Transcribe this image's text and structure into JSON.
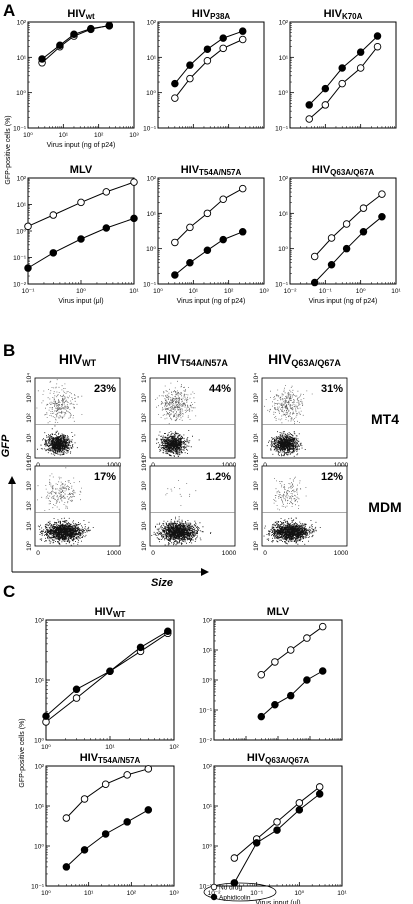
{
  "figure": {
    "panel_letters": [
      "A",
      "B",
      "C"
    ],
    "panel_a": {
      "ylabel": "GFP-positive cells (%)"
    },
    "panel_b": {
      "gfp_label": "GFP",
      "size_label": "Size",
      "y_ticks": [
        "10⁰",
        "10¹",
        "10²",
        "10³",
        "10⁴"
      ],
      "x_ticks": [
        "0",
        "1000"
      ],
      "row_labels": [
        "MT4",
        "MDM"
      ],
      "columns": [
        {
          "title": "HIV",
          "sub": "WT",
          "percents": [
            "23%",
            "17%"
          ]
        },
        {
          "title": "HIV",
          "sub": "T54A/N57A",
          "percents": [
            "44%",
            "1.2%"
          ]
        },
        {
          "title": "HIV",
          "sub": "Q63A/Q67A",
          "percents": [
            "31%",
            "12%"
          ]
        }
      ]
    },
    "panel_c": {
      "ylabel": "GFP-positive cells (%)",
      "legend": [
        "No drug",
        "Aphidicolin"
      ]
    }
  },
  "chart_data": [
    {
      "panel": "A",
      "type": "line",
      "title": "HIV",
      "title_sub": "wt",
      "xlabel": "Virus input (ng of p24)",
      "ylabel": "GFP-positive cells (%)",
      "xscale": "log",
      "yscale": "log",
      "xlim": [
        1,
        1000
      ],
      "ylim": [
        0.1,
        100
      ],
      "xticks": [
        "10⁰",
        "10¹",
        "10²",
        "10³"
      ],
      "yticks": [
        "10⁻¹",
        "10⁰",
        "10¹",
        "10²"
      ],
      "series": [
        {
          "marker": "open",
          "x": [
            2.5,
            8,
            20,
            60,
            200
          ],
          "y": [
            7,
            20,
            40,
            62,
            80
          ]
        },
        {
          "marker": "filled",
          "x": [
            2.5,
            8,
            20,
            60,
            200
          ],
          "y": [
            9,
            22,
            45,
            65,
            78
          ]
        }
      ]
    },
    {
      "panel": "A",
      "type": "line",
      "title": "HIV",
      "title_sub": "P38A",
      "xlabel": "",
      "ylabel": "",
      "xscale": "log",
      "yscale": "log",
      "xlim": [
        1,
        1000
      ],
      "ylim": [
        0.1,
        100
      ],
      "xticks": [],
      "yticks": [
        "10⁻¹",
        "10⁰",
        "10¹",
        "10²"
      ],
      "series": [
        {
          "marker": "open",
          "x": [
            3,
            8,
            25,
            70,
            250
          ],
          "y": [
            0.7,
            2.5,
            8,
            18,
            32
          ]
        },
        {
          "marker": "filled",
          "x": [
            3,
            8,
            25,
            70,
            250
          ],
          "y": [
            1.8,
            6,
            17,
            35,
            55
          ]
        }
      ]
    },
    {
      "panel": "A",
      "type": "line",
      "title": "HIV",
      "title_sub": "K70A",
      "xlabel": "",
      "ylabel": "",
      "xscale": "log",
      "yscale": "log",
      "xlim": [
        0.1,
        100
      ],
      "ylim": [
        0.1,
        100
      ],
      "xticks": [],
      "yticks": [
        "10⁻¹",
        "10⁰",
        "10¹",
        "10²"
      ],
      "series": [
        {
          "marker": "open",
          "x": [
            0.35,
            1,
            3,
            10,
            30
          ],
          "y": [
            0.18,
            0.45,
            1.8,
            5,
            20
          ]
        },
        {
          "marker": "filled",
          "x": [
            0.35,
            1,
            3,
            10,
            30
          ],
          "y": [
            0.45,
            1.3,
            5,
            14,
            40
          ]
        }
      ]
    },
    {
      "panel": "A",
      "type": "line",
      "title": "MLV",
      "xlabel": "Virus input (μl)",
      "ylabel": "",
      "xscale": "log",
      "yscale": "log",
      "xlim": [
        0.1,
        10
      ],
      "ylim": [
        0.01,
        100
      ],
      "xticks": [
        "10⁻¹",
        "10⁰",
        "10¹"
      ],
      "yticks": [
        "10⁻²",
        "10⁻¹",
        "10⁰",
        "10¹",
        "10²"
      ],
      "series": [
        {
          "marker": "open",
          "x": [
            0.1,
            0.3,
            1,
            3,
            10
          ],
          "y": [
            1.5,
            4,
            12,
            30,
            70
          ]
        },
        {
          "marker": "filled",
          "x": [
            0.1,
            0.3,
            1,
            3,
            10
          ],
          "y": [
            0.04,
            0.15,
            0.5,
            1.3,
            3
          ]
        }
      ]
    },
    {
      "panel": "A",
      "type": "line",
      "title": "HIV",
      "title_sub": "T54A/N57A",
      "xlabel": "Virus input (ng of p24)",
      "ylabel": "",
      "xscale": "log",
      "yscale": "log",
      "xlim": [
        1,
        1000
      ],
      "ylim": [
        0.1,
        100
      ],
      "xticks": [
        "10⁰",
        "10¹",
        "10²",
        "10³"
      ],
      "yticks": [
        "10⁻¹",
        "10⁰",
        "10¹",
        "10²"
      ],
      "series": [
        {
          "marker": "open",
          "x": [
            3,
            8,
            25,
            70,
            250
          ],
          "y": [
            1.5,
            4,
            10,
            25,
            50
          ]
        },
        {
          "marker": "filled",
          "x": [
            3,
            8,
            25,
            70,
            250
          ],
          "y": [
            0.18,
            0.4,
            0.9,
            1.8,
            3
          ]
        }
      ]
    },
    {
      "panel": "A",
      "type": "line",
      "title": "HIV",
      "title_sub": "Q63A/Q67A",
      "xlabel": "Virus input (ng of p24)",
      "ylabel": "",
      "xscale": "log",
      "yscale": "log",
      "xlim": [
        0.01,
        10
      ],
      "ylim": [
        0.1,
        100
      ],
      "xticks": [
        "10⁻²",
        "10⁻¹",
        "10⁰",
        "10¹"
      ],
      "yticks": [
        "10⁻¹",
        "10⁰",
        "10¹",
        "10²"
      ],
      "series": [
        {
          "marker": "open",
          "x": [
            0.05,
            0.15,
            0.4,
            1.2,
            4
          ],
          "y": [
            0.6,
            2,
            5,
            14,
            35
          ]
        },
        {
          "marker": "filled",
          "x": [
            0.05,
            0.15,
            0.4,
            1.2,
            4
          ],
          "y": [
            0.11,
            0.35,
            1,
            3,
            8
          ]
        }
      ]
    },
    {
      "panel": "C",
      "type": "line",
      "title": "HIV",
      "title_sub": "WT",
      "xlabel": "",
      "ylabel": "GFP-positive cells (%)",
      "xscale": "log",
      "yscale": "log",
      "xlim": [
        1,
        100
      ],
      "ylim": [
        1,
        100
      ],
      "xticks": [
        "10⁰",
        "10¹",
        "10²"
      ],
      "yticks": [
        "10⁰",
        "10¹",
        "10²"
      ],
      "series": [
        {
          "marker": "open",
          "x": [
            1,
            3,
            10,
            30,
            80
          ],
          "y": [
            2,
            5,
            14,
            30,
            60
          ]
        },
        {
          "marker": "filled",
          "x": [
            1,
            3,
            10,
            30,
            80
          ],
          "y": [
            2.5,
            7,
            14,
            35,
            65
          ]
        }
      ]
    },
    {
      "panel": "C",
      "type": "line",
      "title": "MLV",
      "xlabel": "",
      "ylabel": "",
      "xscale": "log",
      "yscale": "log",
      "xlim": [
        0.1,
        1000
      ],
      "ylim": [
        0.01,
        100
      ],
      "xticks": [],
      "yticks": [
        "10⁻²",
        "10⁻¹",
        "10⁰",
        "10¹",
        "10²"
      ],
      "series": [
        {
          "marker": "open",
          "x": [
            3,
            8,
            25,
            80,
            250
          ],
          "y": [
            1.5,
            4,
            10,
            25,
            60
          ]
        },
        {
          "marker": "filled",
          "x": [
            3,
            8,
            25,
            80,
            250
          ],
          "y": [
            0.06,
            0.15,
            0.3,
            1,
            2
          ]
        }
      ]
    },
    {
      "panel": "C",
      "type": "line",
      "title": "HIV",
      "title_sub": "T54A/N57A",
      "xlabel": "",
      "ylabel": "GFP-positive cells (%)",
      "xscale": "log",
      "yscale": "log",
      "xlim": [
        1,
        1000
      ],
      "ylim": [
        0.1,
        100
      ],
      "xticks": [
        "10⁰",
        "10¹",
        "10²",
        "10³"
      ],
      "yticks": [
        "10⁻¹",
        "10⁰",
        "10¹",
        "10²"
      ],
      "series": [
        {
          "marker": "open",
          "x": [
            3,
            8,
            25,
            80,
            250
          ],
          "y": [
            5,
            15,
            35,
            60,
            85
          ]
        },
        {
          "marker": "filled",
          "x": [
            3,
            8,
            25,
            80,
            250
          ],
          "y": [
            0.3,
            0.8,
            2,
            4,
            8
          ]
        }
      ]
    },
    {
      "panel": "C",
      "type": "line",
      "title": "HIV",
      "title_sub": "Q63A/Q67A",
      "xlabel": "Virus input (μl)",
      "ylabel": "",
      "xscale": "log",
      "yscale": "log",
      "xlim": [
        0.01,
        10
      ],
      "ylim": [
        0.1,
        100
      ],
      "xticks": [
        "10⁻²",
        "10⁻¹",
        "10⁰",
        "10¹"
      ],
      "yticks": [
        "10⁻¹",
        "10⁰",
        "10¹",
        "10²"
      ],
      "series": [
        {
          "marker": "open",
          "x": [
            0.03,
            0.1,
            0.3,
            1,
            3
          ],
          "y": [
            0.5,
            1.5,
            4,
            12,
            30
          ]
        },
        {
          "marker": "filled",
          "x": [
            0.03,
            0.1,
            0.3,
            1,
            3
          ],
          "y": [
            0.12,
            1.2,
            2.5,
            8,
            20
          ]
        }
      ]
    }
  ]
}
